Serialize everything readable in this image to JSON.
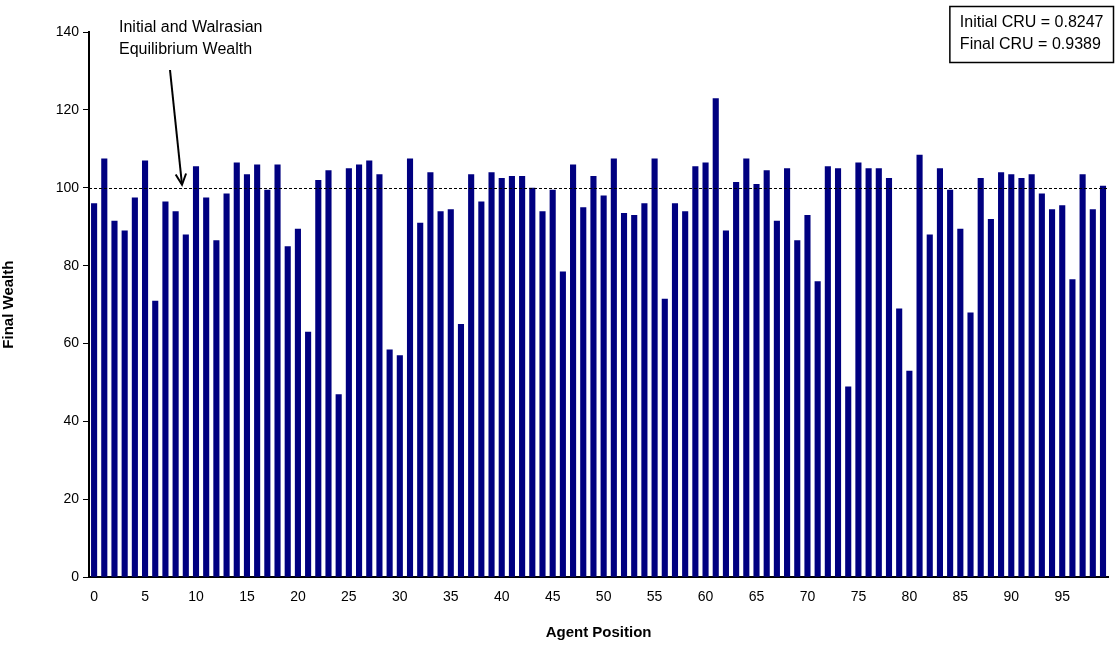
{
  "chart_data": {
    "type": "bar",
    "xlabel": "Agent Position",
    "ylabel": "Final Wealth",
    "categories": [
      "0",
      null,
      null,
      null,
      null,
      "5",
      null,
      null,
      null,
      null,
      "10",
      null,
      null,
      null,
      null,
      "15",
      null,
      null,
      null,
      null,
      "20",
      null,
      null,
      null,
      null,
      "25",
      null,
      null,
      null,
      null,
      "30",
      null,
      null,
      null,
      null,
      "35",
      null,
      null,
      null,
      null,
      "40",
      null,
      null,
      null,
      null,
      "45",
      null,
      null,
      null,
      null,
      "50",
      null,
      null,
      null,
      null,
      "55",
      null,
      null,
      null,
      null,
      "60",
      null,
      null,
      null,
      null,
      "65",
      null,
      null,
      null,
      null,
      "70",
      null,
      null,
      null,
      null,
      "75",
      null,
      null,
      null,
      null,
      "80",
      null,
      null,
      null,
      null,
      "85",
      null,
      null,
      null,
      null,
      "90",
      null,
      null,
      null,
      null,
      "95",
      null,
      null,
      null,
      null
    ],
    "values": [
      96,
      107.5,
      91.5,
      89,
      97.5,
      107,
      71,
      96.5,
      94,
      88,
      105.5,
      97.5,
      86.5,
      98.5,
      106.5,
      103.5,
      106,
      99.5,
      106,
      85,
      89.5,
      63,
      102,
      104.5,
      47,
      105,
      106,
      107,
      103.5,
      58.5,
      57,
      107.5,
      91,
      104,
      94,
      94.5,
      65,
      103.5,
      96.5,
      104,
      102.5,
      103,
      103,
      100,
      94,
      99.5,
      78.5,
      106,
      95,
      103,
      98,
      107.5,
      93.5,
      93,
      96,
      107.5,
      71.5,
      96,
      94,
      105.5,
      106.5,
      123,
      89,
      101.5,
      107.5,
      101,
      104.5,
      91.5,
      105,
      86.5,
      93,
      76,
      105.5,
      105,
      49,
      106.5,
      105,
      105,
      102.5,
      69,
      53,
      108.5,
      88,
      105,
      99.5,
      89.5,
      68,
      102.5,
      92,
      104,
      103.5,
      102.5,
      103.5,
      98.5,
      94.5,
      95.5,
      76.5,
      103.5,
      94.5,
      100.5
    ],
    "color": "#000080",
    "ylim": [
      0,
      140
    ],
    "yticks": [
      0,
      20,
      40,
      60,
      80,
      100,
      120,
      140
    ],
    "grid": false,
    "legend": false,
    "ref_lines": [
      {
        "axis": "y",
        "value": 100,
        "label": "Initial and Walrasian\nEquilibrium Wealth",
        "color": "#000000",
        "line_style": "dashed"
      }
    ],
    "annotations": [
      "Initial CRU = 0.8247\nFinal CRU = 0.9389"
    ]
  }
}
